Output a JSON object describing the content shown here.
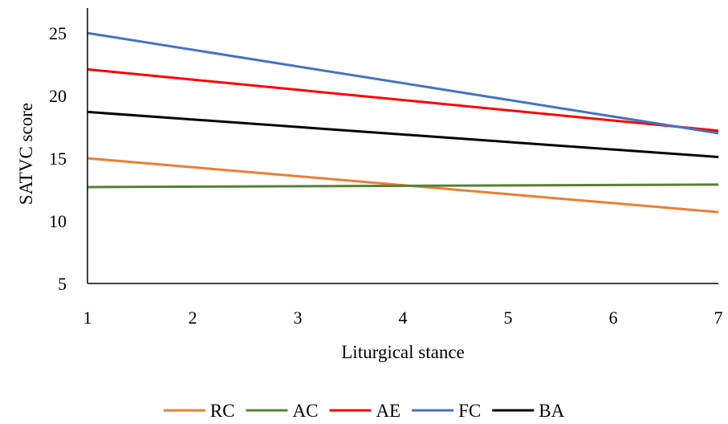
{
  "chart_data": {
    "type": "line",
    "title": "",
    "xlabel": "Liturgical stance",
    "ylabel": "SATVC score",
    "xlim": [
      1,
      7
    ],
    "ylim": [
      5,
      27
    ],
    "x_ticks": [
      1,
      2,
      3,
      4,
      5,
      6,
      7
    ],
    "y_ticks": [
      5,
      10,
      15,
      20,
      25
    ],
    "grid": false,
    "legend_position": "bottom",
    "series": [
      {
        "name": "RC",
        "color": "#ED7D31",
        "x": [
          1,
          7
        ],
        "y": [
          15.0,
          10.7
        ]
      },
      {
        "name": "AC",
        "color": "#548235",
        "x": [
          1,
          7
        ],
        "y": [
          12.7,
          12.9
        ]
      },
      {
        "name": "AE",
        "color": "#FF0000",
        "x": [
          1,
          7
        ],
        "y": [
          22.1,
          17.2
        ]
      },
      {
        "name": "FC",
        "color": "#4472C4",
        "x": [
          1,
          7
        ],
        "y": [
          25.0,
          17.0
        ]
      },
      {
        "name": "BA",
        "color": "#000000",
        "x": [
          1,
          7
        ],
        "y": [
          18.7,
          15.1
        ]
      }
    ]
  }
}
